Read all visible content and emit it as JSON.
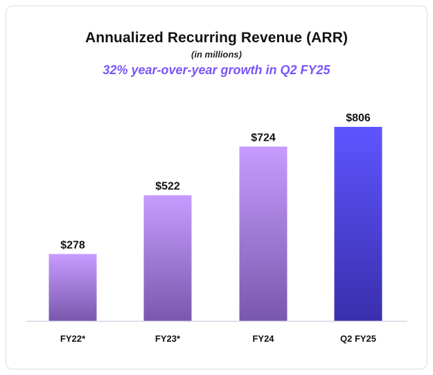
{
  "chart_data": {
    "type": "bar",
    "title": "Annualized Recurring Revenue (ARR)",
    "subtitle": "(in millions)",
    "annotation": "32% year-over-year growth in Q2 FY25",
    "categories": [
      "FY22*",
      "FY23*",
      "FY24",
      "Q2 FY25"
    ],
    "values": [
      278,
      522,
      724,
      806
    ],
    "data_labels": [
      "$278",
      "$522",
      "$724",
      "$806"
    ],
    "xlabel": "",
    "ylabel": "",
    "ylim": [
      0,
      850
    ],
    "grid": false,
    "legend": "none",
    "colors": {
      "bar_top": "#c79bff",
      "bar_bottom": "#7a58ad",
      "highlight_top": "#5e55ff",
      "highlight_bottom": "#3a2fad",
      "accent_text": "#7a55f7",
      "axis": "#d6d6e2",
      "label": "#111111"
    }
  }
}
